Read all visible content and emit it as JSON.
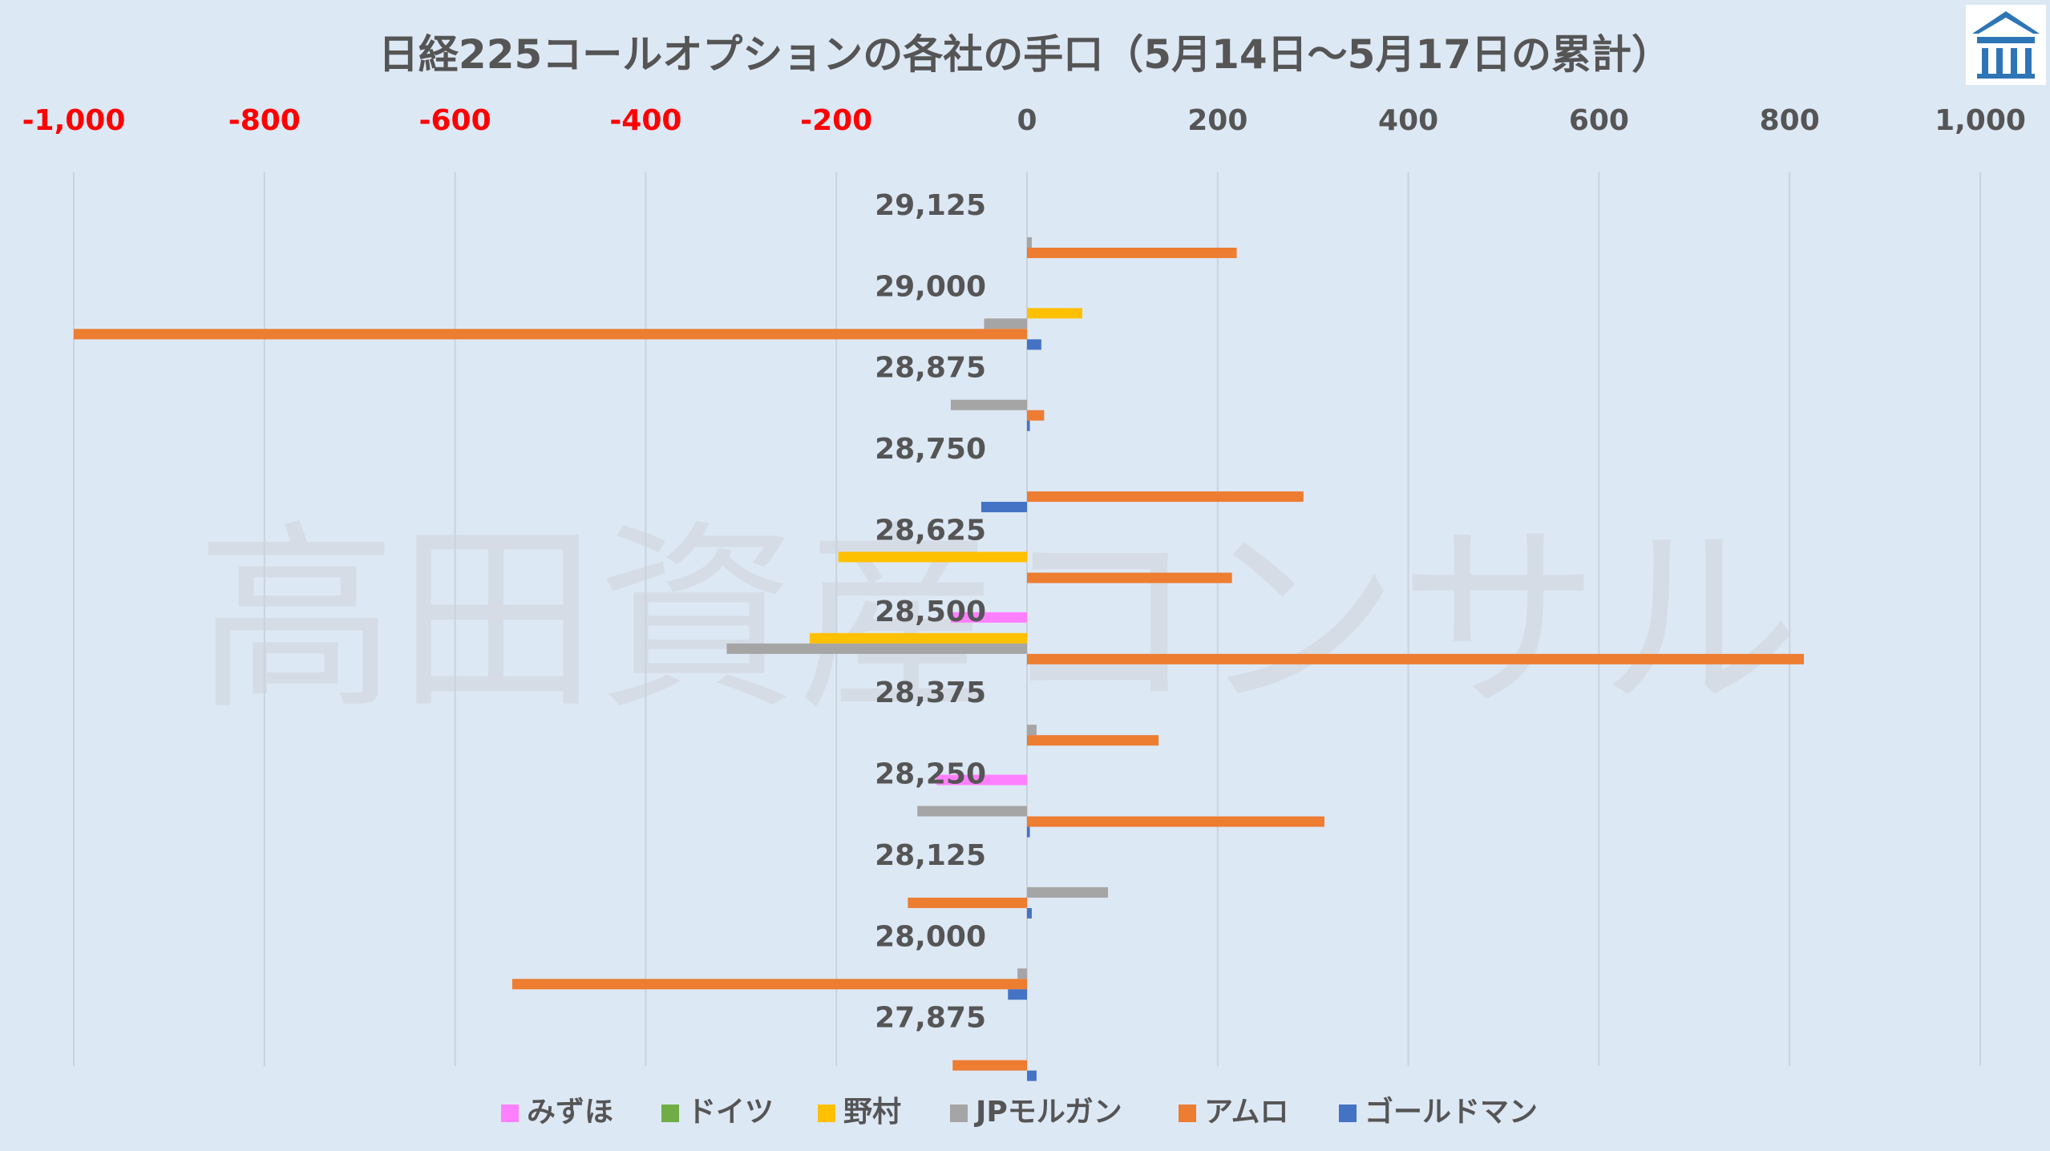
{
  "watermark": "高田資産コンサル",
  "chart_data": {
    "type": "bar",
    "orientation": "horizontal",
    "title": "日経225コールオプションの各社の手口（5月14日～5月17日の累計）",
    "xlim": [
      -1000,
      1000
    ],
    "x_ticks": [
      -1000,
      -800,
      -600,
      -400,
      -200,
      0,
      200,
      400,
      600,
      800,
      1000
    ],
    "x_tick_labels": [
      "-1,000",
      "-800",
      "-600",
      "-400",
      "-200",
      "0",
      "200",
      "400",
      "600",
      "800",
      "1,000"
    ],
    "negative_tick_color": "#ff0000",
    "positive_tick_color": "#555555",
    "grid": true,
    "legend_position": "bottom",
    "categories": [
      "29,125",
      "29,000",
      "28,875",
      "28,750",
      "28,625",
      "28,500",
      "28,375",
      "28,250",
      "28,125",
      "28,000",
      "27,875"
    ],
    "series": [
      {
        "name": "みずほ",
        "color": "#ff80ff",
        "values": [
          0,
          0,
          0,
          0,
          0,
          -80,
          0,
          -95,
          0,
          0,
          0
        ]
      },
      {
        "name": "ドイツ",
        "color": "#70ad47",
        "values": [
          0,
          0,
          0,
          0,
          0,
          0,
          0,
          0,
          0,
          0,
          0
        ]
      },
      {
        "name": "野村",
        "color": "#ffc000",
        "values": [
          0,
          58,
          0,
          0,
          -198,
          -228,
          0,
          0,
          0,
          0,
          0
        ]
      },
      {
        "name": "JPモルガン",
        "color": "#a5a5a5",
        "values": [
          5,
          -45,
          -80,
          0,
          0,
          -315,
          10,
          -115,
          85,
          -10,
          0
        ]
      },
      {
        "name": "アムロ",
        "color": "#ed7d31",
        "values": [
          220,
          -1000,
          18,
          290,
          215,
          815,
          138,
          312,
          -125,
          -540,
          -78
        ]
      },
      {
        "name": "ゴールドマン",
        "color": "#4472c4",
        "values": [
          0,
          15,
          3,
          -48,
          0,
          0,
          0,
          3,
          5,
          -20,
          10
        ]
      }
    ]
  }
}
